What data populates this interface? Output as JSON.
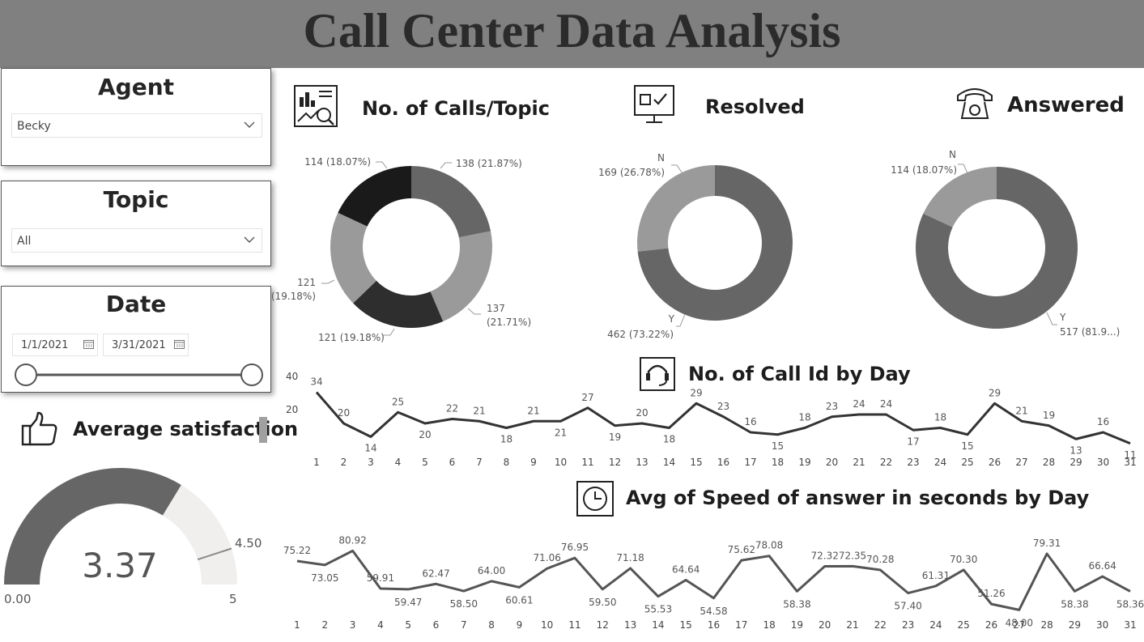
{
  "header": {
    "title": "Call Center Data Analysis"
  },
  "filters": {
    "agent": {
      "title": "Agent",
      "value": "Becky"
    },
    "topic": {
      "title": "Topic",
      "value": "All"
    },
    "date": {
      "title": "Date",
      "start": "1/1/2021",
      "end": "3/31/2021"
    }
  },
  "satisfaction": {
    "title": "Average satisfaction",
    "value": 3.37,
    "value_label": "3.37",
    "min": 0,
    "min_label": "0.00",
    "max": 5,
    "max_label": "5",
    "target": 4.5,
    "target_label": "4.50",
    "colors": {
      "fill": "#666666",
      "track": "#f0efee",
      "target": "#8a8a8a"
    }
  },
  "icons": {
    "calls_topic": "chart-report-icon",
    "resolved": "monitor-checkbox-icon",
    "answered": "telephone-icon",
    "calls_day": "headset-icon",
    "speed": "clock-icon",
    "satisfaction": "thumbs-up-icon"
  },
  "chart_data": [
    {
      "type": "pie",
      "title": "No. of Calls/Topic",
      "slices": [
        {
          "value": 138,
          "label": "138 (21.87%)",
          "color": "#666666"
        },
        {
          "value": 137,
          "label_lines": [
            "137",
            "(21.71%)"
          ],
          "color": "#9a9a9a"
        },
        {
          "value": 121,
          "label": "121 (19.18%)",
          "color": "#2e2e2e"
        },
        {
          "value": 121,
          "label_lines": [
            "121",
            "(19.18%)"
          ],
          "color": "#9a9a9a"
        },
        {
          "value": 114,
          "label": "114 (18.07%)",
          "color": "#1a1a1a"
        }
      ]
    },
    {
      "type": "pie",
      "title": "Resolved",
      "slices": [
        {
          "name": "Y",
          "value": 462,
          "label": "462 (73.22%)",
          "color": "#666666"
        },
        {
          "name": "N",
          "value": 169,
          "label": "169 (26.78%)",
          "color": "#9a9a9a"
        }
      ]
    },
    {
      "type": "pie",
      "title": "Answered",
      "slices": [
        {
          "name": "Y",
          "value": 517,
          "label": "517 (81.9...)",
          "color": "#666666"
        },
        {
          "name": "N",
          "value": 114,
          "label": "114 (18.07%)",
          "color": "#9a9a9a"
        }
      ]
    },
    {
      "type": "line",
      "title": "No. of Call Id by Day",
      "x": [
        1,
        2,
        3,
        4,
        5,
        6,
        7,
        8,
        9,
        10,
        11,
        12,
        13,
        14,
        15,
        16,
        17,
        18,
        19,
        20,
        21,
        22,
        23,
        24,
        25,
        26,
        27,
        28,
        29,
        30,
        31
      ],
      "y": [
        34,
        20,
        14,
        25,
        20,
        22,
        21,
        18,
        21,
        21,
        27,
        19,
        20,
        18,
        29,
        23,
        16,
        15,
        18,
        23,
        24,
        24,
        17,
        18,
        15,
        29,
        21,
        19,
        13,
        16,
        11
      ],
      "y_ticks": [
        20,
        40
      ],
      "ylim": [
        0,
        40
      ],
      "color": "#333333"
    },
    {
      "type": "line",
      "title": "Avg of Speed of answer in seconds by Day",
      "x": [
        1,
        2,
        3,
        4,
        5,
        6,
        7,
        8,
        9,
        10,
        11,
        12,
        13,
        14,
        15,
        16,
        17,
        18,
        19,
        20,
        21,
        22,
        23,
        24,
        25,
        26,
        27,
        28,
        29,
        30,
        31
      ],
      "y": [
        75.22,
        73.05,
        80.92,
        59.91,
        59.47,
        62.47,
        58.5,
        64.0,
        60.61,
        71.06,
        76.95,
        59.5,
        71.18,
        55.53,
        64.64,
        54.58,
        75.62,
        78.08,
        58.38,
        72.32,
        72.35,
        70.28,
        57.4,
        61.31,
        70.3,
        51.26,
        48.0,
        79.31,
        58.38,
        66.64,
        58.36
      ],
      "labels": [
        "75.22",
        "73.05",
        "80.92",
        "59.91",
        "59.47",
        "62.47",
        "58.50",
        "64.00",
        "60.61",
        "71.06",
        "76.95",
        "59.50",
        "71.18",
        "55.53",
        "64.64",
        "54.58",
        "75.62",
        "78.08",
        "58.38",
        "72.32",
        "72.35",
        "70.28",
        "57.40",
        "61.31",
        "70.30",
        "51.26",
        "48.00",
        "79.31",
        "58.38",
        "66.64",
        "58.36"
      ],
      "color": "#555555"
    }
  ]
}
